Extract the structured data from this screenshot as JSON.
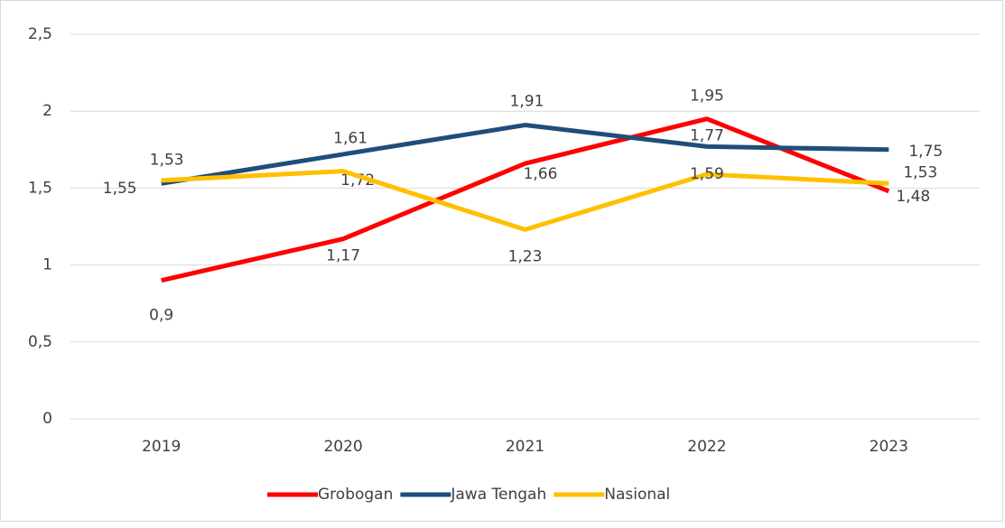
{
  "chart_data": {
    "type": "line",
    "categories": [
      "2019",
      "2020",
      "2021",
      "2022",
      "2023"
    ],
    "series": [
      {
        "name": "Grobogan",
        "color": "#ff0000",
        "values": [
          0.9,
          1.17,
          1.66,
          1.95,
          1.48
        ],
        "value_labels": [
          "0,9",
          "1,17",
          "1,66",
          "1,95",
          "1,48"
        ]
      },
      {
        "name": "Jawa Tengah",
        "color": "#1f4e79",
        "values": [
          1.53,
          1.72,
          1.91,
          1.77,
          1.75
        ],
        "value_labels": [
          "1,53",
          "1,72",
          "1,91",
          "1,77",
          "1,75"
        ]
      },
      {
        "name": "Nasional",
        "color": "#ffc000",
        "values": [
          1.55,
          1.61,
          1.23,
          1.59,
          1.53
        ],
        "value_labels": [
          "1,55",
          "1,61",
          "1,23",
          "1,59",
          "1,53"
        ]
      }
    ],
    "ylim": [
      0,
      2.5
    ],
    "yticks": [
      0,
      {
        "value": 0.5,
        "label": "0,5"
      },
      1,
      {
        "value": 1.5,
        "label": "1,5"
      },
      2,
      {
        "value": 2.5,
        "label": "2,5"
      }
    ],
    "grid": true,
    "legend": "bottom"
  }
}
